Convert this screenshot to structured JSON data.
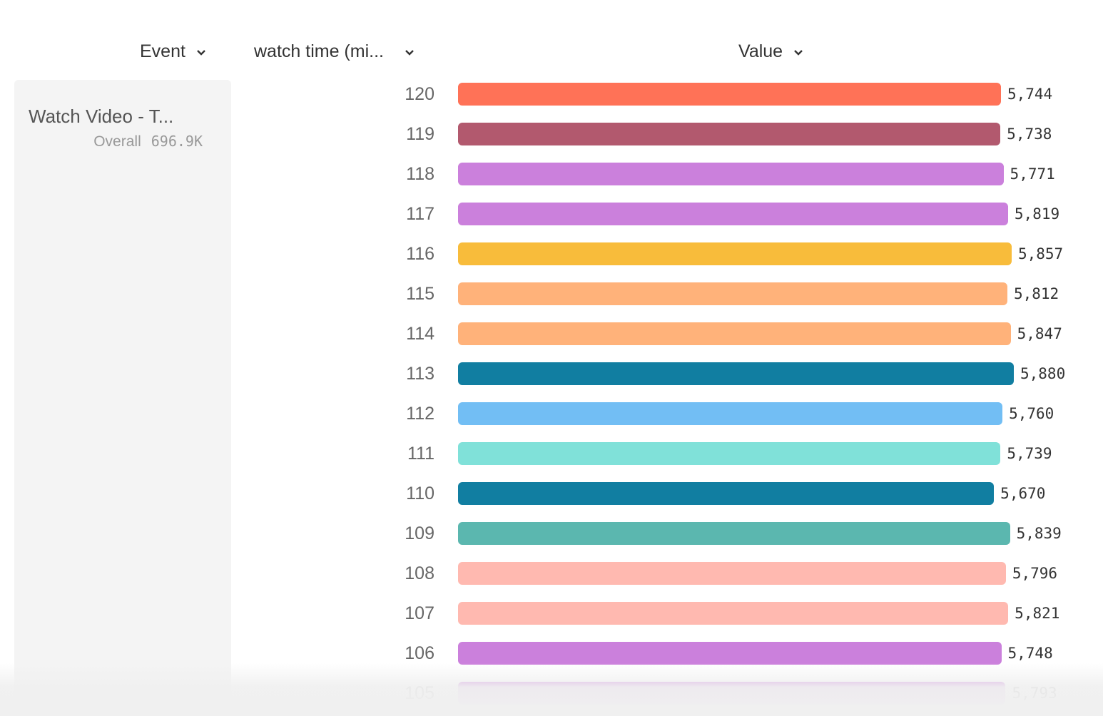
{
  "headers": {
    "event": "Event",
    "segment": "watch time (mi...",
    "value": "Value"
  },
  "event_panel": {
    "name": "Watch Video - T...",
    "overall_label": "Overall",
    "overall_value": "696.9K"
  },
  "chart_data": {
    "type": "bar",
    "orientation": "horizontal",
    "categories": [
      "120",
      "119",
      "118",
      "117",
      "116",
      "115",
      "114",
      "113",
      "112",
      "111",
      "110",
      "109",
      "108",
      "107",
      "106",
      "105"
    ],
    "values": [
      5744,
      5738,
      5771,
      5819,
      5857,
      5812,
      5847,
      5880,
      5760,
      5739,
      5670,
      5839,
      5796,
      5821,
      5748,
      5793
    ],
    "value_labels": [
      "5,744",
      "5,738",
      "5,771",
      "5,819",
      "5,857",
      "5,812",
      "5,847",
      "5,880",
      "5,760",
      "5,739",
      "5,670",
      "5,839",
      "5,796",
      "5,821",
      "5,748",
      "5,793"
    ],
    "colors": [
      "#ff7257",
      "#b2596e",
      "#cb80dc",
      "#cb80dc",
      "#f8bc3b",
      "#ffb27a",
      "#ffb27a",
      "#117ea1",
      "#72bef4",
      "#80e1d9",
      "#117ea1",
      "#5bb7af",
      "#ffb9b0",
      "#ffb9b0",
      "#cb80dc",
      "#cb80dc"
    ],
    "xlim": [
      0,
      5880
    ]
  }
}
